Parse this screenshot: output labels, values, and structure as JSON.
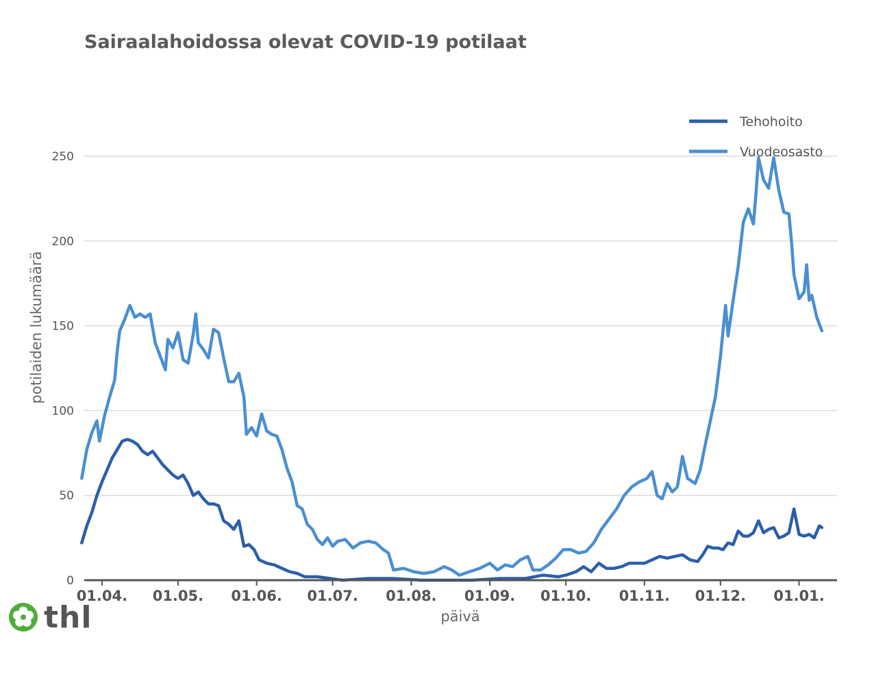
{
  "title": "Sairaalahoidossa olevat COVID-19 potilaat",
  "logo": {
    "text": "thl",
    "icon": "flower-logo-icon",
    "color": "#4fae3a"
  },
  "colors": {
    "tehohoito": "#2b5fa8",
    "vuodeosasto": "#4a8fd0",
    "grid": "#dcdcdc",
    "axis": "#555555"
  },
  "chart_data": {
    "type": "line",
    "title": "Sairaalahoidossa olevat COVID-19 potilaat",
    "xlabel": "päivä",
    "ylabel": "potilaiden lukumäärä",
    "ylim": [
      0,
      250
    ],
    "yticks": [
      0,
      50,
      100,
      150,
      200,
      250
    ],
    "xticks": [
      "01.04.",
      "01.05.",
      "01.06.",
      "01.07.",
      "01.08.",
      "01.09.",
      "01.10.",
      "01.11.",
      "01.12.",
      "01.01."
    ],
    "xlim": [
      "2020-03-25",
      "2021-01-16"
    ],
    "legend": "top-right",
    "grid": true,
    "series": [
      {
        "name": "Tehohoito",
        "color": "#2b5fa8",
        "points": [
          [
            "2020-03-24",
            22
          ],
          [
            "2020-03-26",
            32
          ],
          [
            "2020-03-28",
            40
          ],
          [
            "2020-03-30",
            50
          ],
          [
            "2020-04-01",
            58
          ],
          [
            "2020-04-03",
            65
          ],
          [
            "2020-04-05",
            72
          ],
          [
            "2020-04-07",
            77
          ],
          [
            "2020-04-09",
            82
          ],
          [
            "2020-04-11",
            83
          ],
          [
            "2020-04-13",
            82
          ],
          [
            "2020-04-15",
            80
          ],
          [
            "2020-04-17",
            76
          ],
          [
            "2020-04-19",
            74
          ],
          [
            "2020-04-21",
            76
          ],
          [
            "2020-04-23",
            72
          ],
          [
            "2020-04-25",
            68
          ],
          [
            "2020-04-27",
            65
          ],
          [
            "2020-04-29",
            62
          ],
          [
            "2020-05-01",
            60
          ],
          [
            "2020-05-03",
            62
          ],
          [
            "2020-05-05",
            57
          ],
          [
            "2020-05-07",
            50
          ],
          [
            "2020-05-09",
            52
          ],
          [
            "2020-05-11",
            48
          ],
          [
            "2020-05-13",
            45
          ],
          [
            "2020-05-15",
            45
          ],
          [
            "2020-05-17",
            44
          ],
          [
            "2020-05-19",
            35
          ],
          [
            "2020-05-21",
            33
          ],
          [
            "2020-05-23",
            30
          ],
          [
            "2020-05-25",
            35
          ],
          [
            "2020-05-27",
            20
          ],
          [
            "2020-05-29",
            21
          ],
          [
            "2020-05-31",
            18
          ],
          [
            "2020-06-02",
            12
          ],
          [
            "2020-06-05",
            10
          ],
          [
            "2020-06-08",
            9
          ],
          [
            "2020-06-11",
            7
          ],
          [
            "2020-06-14",
            5
          ],
          [
            "2020-06-17",
            4
          ],
          [
            "2020-06-20",
            2
          ],
          [
            "2020-06-25",
            2
          ],
          [
            "2020-06-30",
            1
          ],
          [
            "2020-07-05",
            0
          ],
          [
            "2020-07-15",
            1
          ],
          [
            "2020-07-25",
            1
          ],
          [
            "2020-08-05",
            0
          ],
          [
            "2020-08-15",
            0
          ],
          [
            "2020-08-25",
            0
          ],
          [
            "2020-09-05",
            1
          ],
          [
            "2020-09-15",
            1
          ],
          [
            "2020-09-22",
            3
          ],
          [
            "2020-09-28",
            2
          ],
          [
            "2020-10-01",
            3
          ],
          [
            "2020-10-05",
            5
          ],
          [
            "2020-10-08",
            8
          ],
          [
            "2020-10-11",
            5
          ],
          [
            "2020-10-14",
            10
          ],
          [
            "2020-10-17",
            7
          ],
          [
            "2020-10-20",
            7
          ],
          [
            "2020-10-23",
            8
          ],
          [
            "2020-10-26",
            10
          ],
          [
            "2020-10-29",
            10
          ],
          [
            "2020-11-01",
            10
          ],
          [
            "2020-11-04",
            12
          ],
          [
            "2020-11-07",
            14
          ],
          [
            "2020-11-10",
            13
          ],
          [
            "2020-11-13",
            14
          ],
          [
            "2020-11-16",
            15
          ],
          [
            "2020-11-19",
            12
          ],
          [
            "2020-11-22",
            11
          ],
          [
            "2020-11-24",
            15
          ],
          [
            "2020-11-26",
            20
          ],
          [
            "2020-11-28",
            19
          ],
          [
            "2020-11-30",
            19
          ],
          [
            "2020-12-02",
            18
          ],
          [
            "2020-12-04",
            22
          ],
          [
            "2020-12-06",
            21
          ],
          [
            "2020-12-08",
            29
          ],
          [
            "2020-12-10",
            26
          ],
          [
            "2020-12-12",
            26
          ],
          [
            "2020-12-14",
            28
          ],
          [
            "2020-12-16",
            35
          ],
          [
            "2020-12-18",
            28
          ],
          [
            "2020-12-20",
            30
          ],
          [
            "2020-12-22",
            31
          ],
          [
            "2020-12-24",
            25
          ],
          [
            "2020-12-26",
            26
          ],
          [
            "2020-12-28",
            28
          ],
          [
            "2020-12-30",
            42
          ],
          [
            "2021-01-01",
            27
          ],
          [
            "2021-01-03",
            26
          ],
          [
            "2021-01-05",
            27
          ],
          [
            "2021-01-07",
            25
          ],
          [
            "2021-01-09",
            32
          ],
          [
            "2021-01-10",
            31
          ]
        ]
      },
      {
        "name": "Vuodeosasto",
        "color": "#4a8fd0",
        "points": [
          [
            "2020-03-24",
            60
          ],
          [
            "2020-03-26",
            77
          ],
          [
            "2020-03-28",
            87
          ],
          [
            "2020-03-30",
            94
          ],
          [
            "2020-03-31",
            82
          ],
          [
            "2020-04-02",
            97
          ],
          [
            "2020-04-04",
            108
          ],
          [
            "2020-04-06",
            118
          ],
          [
            "2020-04-07",
            135
          ],
          [
            "2020-04-08",
            147
          ],
          [
            "2020-04-10",
            154
          ],
          [
            "2020-04-12",
            162
          ],
          [
            "2020-04-14",
            155
          ],
          [
            "2020-04-16",
            157
          ],
          [
            "2020-04-18",
            155
          ],
          [
            "2020-04-20",
            157
          ],
          [
            "2020-04-22",
            140
          ],
          [
            "2020-04-24",
            132
          ],
          [
            "2020-04-26",
            124
          ],
          [
            "2020-04-27",
            142
          ],
          [
            "2020-04-29",
            137
          ],
          [
            "2020-05-01",
            146
          ],
          [
            "2020-05-03",
            130
          ],
          [
            "2020-05-05",
            128
          ],
          [
            "2020-05-07",
            145
          ],
          [
            "2020-05-08",
            157
          ],
          [
            "2020-05-09",
            140
          ],
          [
            "2020-05-11",
            136
          ],
          [
            "2020-05-13",
            131
          ],
          [
            "2020-05-15",
            148
          ],
          [
            "2020-05-17",
            146
          ],
          [
            "2020-05-19",
            131
          ],
          [
            "2020-05-21",
            117
          ],
          [
            "2020-05-23",
            117
          ],
          [
            "2020-05-25",
            122
          ],
          [
            "2020-05-27",
            108
          ],
          [
            "2020-05-28",
            86
          ],
          [
            "2020-05-30",
            90
          ],
          [
            "2020-06-01",
            85
          ],
          [
            "2020-06-03",
            98
          ],
          [
            "2020-06-05",
            88
          ],
          [
            "2020-06-07",
            86
          ],
          [
            "2020-06-09",
            85
          ],
          [
            "2020-06-11",
            77
          ],
          [
            "2020-06-13",
            66
          ],
          [
            "2020-06-15",
            58
          ],
          [
            "2020-06-17",
            44
          ],
          [
            "2020-06-19",
            42
          ],
          [
            "2020-06-21",
            33
          ],
          [
            "2020-06-23",
            30
          ],
          [
            "2020-06-25",
            24
          ],
          [
            "2020-06-27",
            21
          ],
          [
            "2020-06-29",
            25
          ],
          [
            "2020-07-01",
            20
          ],
          [
            "2020-07-03",
            23
          ],
          [
            "2020-07-06",
            24
          ],
          [
            "2020-07-09",
            19
          ],
          [
            "2020-07-12",
            22
          ],
          [
            "2020-07-15",
            23
          ],
          [
            "2020-07-18",
            22
          ],
          [
            "2020-07-21",
            18
          ],
          [
            "2020-07-23",
            16
          ],
          [
            "2020-07-25",
            6
          ],
          [
            "2020-07-29",
            7
          ],
          [
            "2020-08-02",
            5
          ],
          [
            "2020-08-06",
            4
          ],
          [
            "2020-08-10",
            5
          ],
          [
            "2020-08-14",
            8
          ],
          [
            "2020-08-17",
            6
          ],
          [
            "2020-08-20",
            3
          ],
          [
            "2020-08-24",
            5
          ],
          [
            "2020-08-28",
            7
          ],
          [
            "2020-09-01",
            10
          ],
          [
            "2020-09-04",
            6
          ],
          [
            "2020-09-07",
            9
          ],
          [
            "2020-09-10",
            8
          ],
          [
            "2020-09-13",
            12
          ],
          [
            "2020-09-16",
            14
          ],
          [
            "2020-09-18",
            6
          ],
          [
            "2020-09-21",
            6
          ],
          [
            "2020-09-24",
            9
          ],
          [
            "2020-09-27",
            13
          ],
          [
            "2020-09-30",
            18
          ],
          [
            "2020-10-03",
            18
          ],
          [
            "2020-10-06",
            16
          ],
          [
            "2020-10-09",
            17
          ],
          [
            "2020-10-12",
            22
          ],
          [
            "2020-10-15",
            30
          ],
          [
            "2020-10-18",
            36
          ],
          [
            "2020-10-21",
            42
          ],
          [
            "2020-10-24",
            50
          ],
          [
            "2020-10-27",
            55
          ],
          [
            "2020-10-30",
            58
          ],
          [
            "2020-11-02",
            60
          ],
          [
            "2020-11-04",
            64
          ],
          [
            "2020-11-06",
            50
          ],
          [
            "2020-11-08",
            48
          ],
          [
            "2020-11-10",
            57
          ],
          [
            "2020-11-12",
            52
          ],
          [
            "2020-11-14",
            55
          ],
          [
            "2020-11-16",
            73
          ],
          [
            "2020-11-18",
            60
          ],
          [
            "2020-11-21",
            57
          ],
          [
            "2020-11-23",
            65
          ],
          [
            "2020-11-25",
            80
          ],
          [
            "2020-11-27",
            94
          ],
          [
            "2020-11-29",
            108
          ],
          [
            "2020-12-01",
            132
          ],
          [
            "2020-12-03",
            162
          ],
          [
            "2020-12-04",
            144
          ],
          [
            "2020-12-06",
            165
          ],
          [
            "2020-12-08",
            185
          ],
          [
            "2020-12-10",
            211
          ],
          [
            "2020-12-12",
            219
          ],
          [
            "2020-12-14",
            210
          ],
          [
            "2020-12-15",
            228
          ],
          [
            "2020-12-16",
            249
          ],
          [
            "2020-12-18",
            236
          ],
          [
            "2020-12-20",
            231
          ],
          [
            "2020-12-22",
            249
          ],
          [
            "2020-12-24",
            230
          ],
          [
            "2020-12-26",
            217
          ],
          [
            "2020-12-28",
            216
          ],
          [
            "2020-12-29",
            200
          ],
          [
            "2020-12-30",
            180
          ],
          [
            "2021-01-01",
            166
          ],
          [
            "2021-01-03",
            170
          ],
          [
            "2021-01-04",
            186
          ],
          [
            "2021-01-05",
            165
          ],
          [
            "2021-01-06",
            168
          ],
          [
            "2021-01-08",
            155
          ],
          [
            "2021-01-10",
            147
          ]
        ]
      }
    ]
  }
}
